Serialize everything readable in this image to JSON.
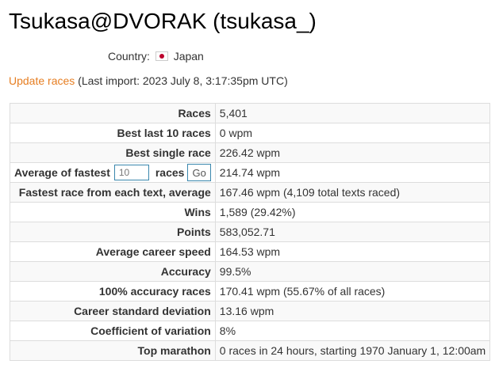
{
  "header": {
    "title": "Tsukasa@DVORAK (tsukasa_)"
  },
  "profile": {
    "country_label": "Country:",
    "country_flag_icon": "japan-flag-icon",
    "country_name": "Japan"
  },
  "update": {
    "link_label": "Update races",
    "last_import": "(Last import: 2023 July 8, 3:17:35pm UTC)"
  },
  "stats": {
    "races": {
      "label": "Races",
      "value": "5,401"
    },
    "best_last_10": {
      "label": "Best last 10 races",
      "value": "0 wpm"
    },
    "best_single": {
      "label": "Best single race",
      "value": "226.42 wpm"
    },
    "average_fastest": {
      "label_prefix": "Average of fastest",
      "input_value": "10",
      "label_suffix": "races",
      "go_label": "Go",
      "value": "214.74 wpm"
    },
    "fastest_each_text": {
      "label": "Fastest race from each text, average",
      "value": "167.46 wpm (4,109 total texts raced)"
    },
    "wins": {
      "label": "Wins",
      "value": "1,589 (29.42%)"
    },
    "points": {
      "label": "Points",
      "value": "583,052.71"
    },
    "avg_career_speed": {
      "label": "Average career speed",
      "value": "164.53 wpm"
    },
    "accuracy": {
      "label": "Accuracy",
      "value": "99.5%"
    },
    "accuracy_100": {
      "label": "100% accuracy races",
      "value": "170.41 wpm (55.67% of all races)"
    },
    "career_std_dev": {
      "label": "Career standard deviation",
      "value": "13.16 wpm"
    },
    "coeff_variation": {
      "label": "Coefficient of variation",
      "value": "8%"
    },
    "top_marathon": {
      "label": "Top marathon",
      "value": "0 races in 24 hours, starting 1970 January 1, 12:00am"
    }
  },
  "colors": {
    "link": "#e67e22",
    "input_border": "#3a87ad",
    "row_stripe": "#f9f9f9",
    "table_border": "#dddddd",
    "flag_red": "#bc002d"
  }
}
